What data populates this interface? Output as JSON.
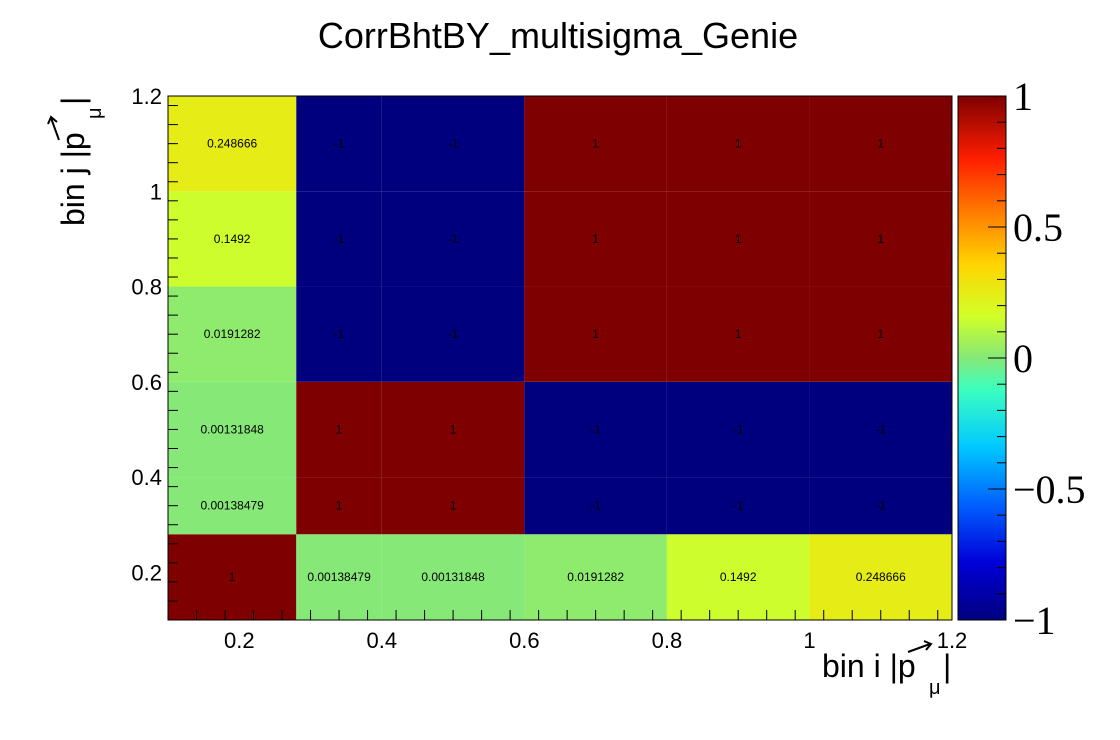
{
  "chart_data": {
    "type": "heatmap",
    "title": "CorrBhtBY_multisigma_Genie",
    "xlabel": "bin i |p_μ|",
    "ylabel": "bin j |p_μ|",
    "x_edges": [
      0.1,
      0.28,
      0.4,
      0.6,
      0.8,
      1.0,
      1.2
    ],
    "y_edges": [
      0.1,
      0.28,
      0.4,
      0.6,
      0.8,
      1.0,
      1.2
    ],
    "xlim": [
      0.1,
      1.2
    ],
    "ylim": [
      0.1,
      1.2
    ],
    "x_ticks": [
      "0.2",
      "0.4",
      "0.6",
      "0.8",
      "1",
      "1.2"
    ],
    "y_ticks": [
      "0.2",
      "0.4",
      "0.6",
      "0.8",
      "1",
      "1.2"
    ],
    "zlim": [
      -1,
      1
    ],
    "colorbar_ticks": [
      "1",
      "0.5",
      "0",
      "−0.5",
      "−1"
    ],
    "cells": [
      [
        1,
        0.00138479,
        0.00131848,
        0.0191282,
        0.1492,
        0.248666
      ],
      [
        0.00138479,
        1,
        1,
        -1,
        -1,
        -1
      ],
      [
        0.00131848,
        1,
        1,
        -1,
        -1,
        -1
      ],
      [
        0.0191282,
        -1,
        -1,
        1,
        1,
        1
      ],
      [
        0.1492,
        -1,
        -1,
        1,
        1,
        1
      ],
      [
        0.248666,
        -1,
        -1,
        1,
        1,
        1
      ]
    ],
    "cell_labels": [
      [
        "1",
        "0.00138479",
        "0.00131848",
        "0.0191282",
        "0.1492",
        "0.248666"
      ],
      [
        "0.00138479",
        "1",
        "1",
        "-1",
        "-1",
        "-1"
      ],
      [
        "0.00131848",
        "1",
        "1",
        "-1",
        "-1",
        "-1"
      ],
      [
        "0.0191282",
        "-1",
        "-1",
        "1",
        "1",
        "1"
      ],
      [
        "0.1492",
        "-1",
        "-1",
        "1",
        "1",
        "1"
      ],
      [
        "0.248666",
        "-1",
        "-1",
        "1",
        "1",
        "1"
      ]
    ],
    "grid": false
  }
}
